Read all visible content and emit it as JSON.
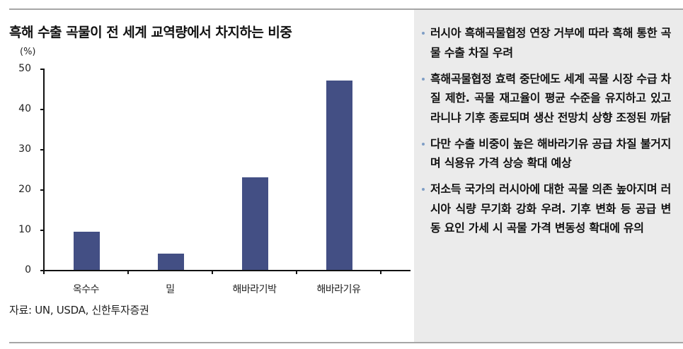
{
  "title": "흑해 수출 곡물이 전 세계 교역량에서 차지하는 비중",
  "source": "자료: UN, USDA, 신한투자증권",
  "chart_data": {
    "type": "bar",
    "title": "흑해 수출 곡물이 전 세계 교역량에서 차지하는 비중",
    "xlabel": "",
    "ylabel": "(%)",
    "categories": [
      "옥수수",
      "밀",
      "해바라기박",
      "해바라기유"
    ],
    "values": [
      9.5,
      4,
      23,
      47
    ],
    "ylim": [
      0,
      50
    ],
    "yticks": [
      0,
      10,
      20,
      30,
      40,
      50
    ],
    "grid": false,
    "legend": "none",
    "bar_color": "#434f84"
  },
  "axis": {
    "unit": "(%)",
    "yticks": [
      "50",
      "40",
      "30",
      "20",
      "10",
      "0"
    ]
  },
  "bullets": [
    "러시아 흑해곡물협정 연장 거부에 따라 흑해 통한 곡물 수출 차질 우려",
    "흑해곡물협정 효력 중단에도 세계 곡물 시장 수급 차질 제한. 곡물 재고율이 평균 수준을 유지하고 있고 라니냐 기후 종료되며 생산 전망치 상향 조정된 까닭",
    "다만 수출 비중이 높은 해바라기유 공급 차질 불거지며 식용유 가격 상승 확대 예상",
    "저소득 국가의 러시아에 대한 곡물 의존 높아지며 러시아 식량 무기화 강화 우려. 기후 변화 등 공급 변동 요인 가세 시 곡물 가격 변동성 확대에 유의"
  ],
  "colors": {
    "bar": "#434f84",
    "panel": "#ebebeb",
    "rule": "#a6a6a6",
    "bullet_dot": "#7f9ec5"
  }
}
